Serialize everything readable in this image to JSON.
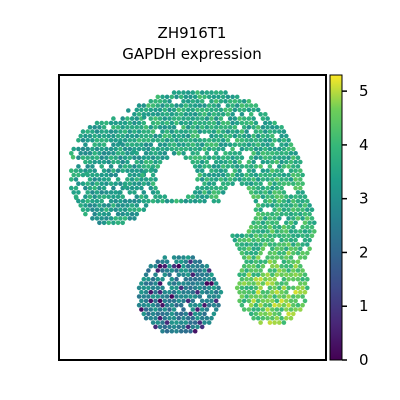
{
  "chart_data": {
    "type": "scatter",
    "title_lines": [
      "ZH916T1",
      "GAPDH expression"
    ],
    "xlabel": "",
    "ylabel": "",
    "grid": false,
    "colormap": "viridis",
    "colorbar": {
      "min": 0,
      "max": 5.3,
      "ticks": [
        0,
        1,
        2,
        3,
        4,
        5
      ],
      "tick_labels": [
        "0",
        "1",
        "2",
        "3",
        "4",
        "5"
      ]
    },
    "regions": [
      {
        "name": "upper-arc",
        "cx": 0.55,
        "cy": 0.82,
        "r": 0.3,
        "level": 3.6
      },
      {
        "name": "left-lobe",
        "cx": 0.2,
        "cy": 0.66,
        "r": 0.16,
        "level": 3.3
      },
      {
        "name": "right-lobe",
        "cx": 0.82,
        "cy": 0.5,
        "r": 0.16,
        "level": 3.9
      },
      {
        "name": "lower-right-hot",
        "cx": 0.8,
        "cy": 0.28,
        "r": 0.13,
        "level": 4.6
      },
      {
        "name": "lower-left",
        "cx": 0.44,
        "cy": 0.22,
        "r": 0.16,
        "level": 2.6
      }
    ],
    "value_range": [
      0,
      5.3
    ]
  },
  "colors": {
    "viridis_low": "#440154",
    "viridis_mid": "#21918c",
    "viridis_high": "#fde725",
    "axes": "#000000"
  }
}
